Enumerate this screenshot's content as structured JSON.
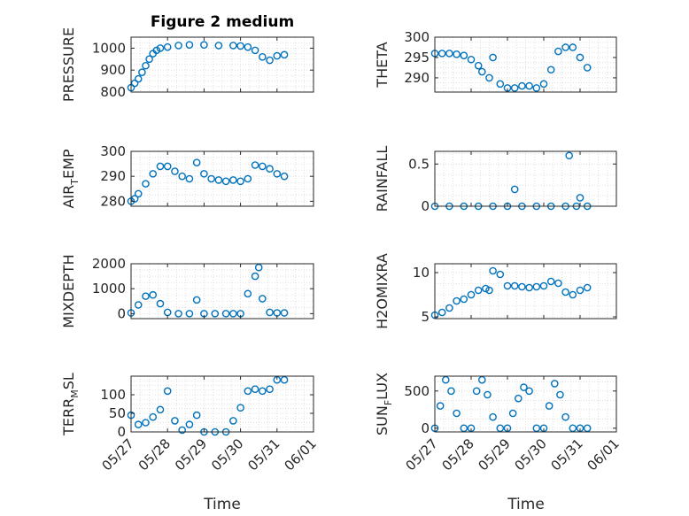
{
  "figure": {
    "title": "Figure 2 medium",
    "xlabel": "Time",
    "marker_color": "#0072BD"
  },
  "chart_data": [
    {
      "type": "scatter",
      "title": "Figure 2 medium",
      "ylabel": "PRESSURE",
      "ylim": [
        800,
        1050
      ],
      "yticks": [
        800,
        900,
        1000
      ],
      "grid": true,
      "xlim": [
        "05/27",
        "06/01"
      ],
      "xticks": [
        "05/27",
        "05/28",
        "05/29",
        "05/30",
        "05/31",
        "06/01"
      ],
      "x": [
        27.0,
        27.1,
        27.2,
        27.3,
        27.4,
        27.5,
        27.6,
        27.7,
        27.8,
        28.0,
        28.3,
        28.6,
        29.0,
        29.4,
        29.8,
        30.0,
        30.2,
        30.4,
        30.6,
        30.8,
        31.0,
        31.2
      ],
      "y": [
        820,
        840,
        860,
        890,
        920,
        950,
        975,
        990,
        1000,
        1005,
        1012,
        1015,
        1015,
        1012,
        1012,
        1010,
        1005,
        990,
        960,
        945,
        965,
        970
      ]
    },
    {
      "type": "scatter",
      "ylabel": "THETA",
      "ylim": [
        286.5,
        300
      ],
      "yticks": [
        290,
        295,
        300
      ],
      "grid": true,
      "xlim": [
        "05/27",
        "06/01"
      ],
      "xticks": [
        "05/27",
        "05/28",
        "05/29",
        "05/30",
        "05/31",
        "06/01"
      ],
      "x": [
        27.0,
        27.2,
        27.4,
        27.6,
        27.8,
        28.0,
        28.2,
        28.3,
        28.5,
        28.6,
        28.8,
        29.0,
        29.2,
        29.4,
        29.6,
        29.8,
        30.0,
        30.2,
        30.4,
        30.6,
        30.8,
        31.0,
        31.2
      ],
      "y": [
        296,
        296,
        296,
        295.8,
        295.5,
        294.5,
        293,
        291.5,
        290,
        295,
        288.5,
        287.5,
        287.5,
        288,
        288,
        287.5,
        288.5,
        292,
        296.5,
        297.5,
        297.5,
        295,
        292.5
      ]
    },
    {
      "type": "scatter",
      "ylabel": "AIR_TEMP",
      "ylim": [
        278,
        300
      ],
      "yticks": [
        280,
        290,
        300
      ],
      "grid": true,
      "xlim": [
        "05/27",
        "06/01"
      ],
      "xticks": [
        "05/27",
        "05/28",
        "05/29",
        "05/30",
        "05/31",
        "06/01"
      ],
      "x": [
        27.0,
        27.1,
        27.2,
        27.4,
        27.6,
        27.8,
        28.0,
        28.2,
        28.4,
        28.6,
        28.8,
        29.0,
        29.2,
        29.4,
        29.6,
        29.8,
        30.0,
        30.2,
        30.4,
        30.6,
        30.8,
        31.0,
        31.2
      ],
      "y": [
        280,
        281,
        283,
        287,
        291,
        294,
        294,
        292,
        290,
        289,
        295.5,
        291,
        289,
        288.5,
        288,
        288.5,
        288,
        289,
        294.5,
        294,
        293,
        291,
        290
      ]
    },
    {
      "type": "scatter",
      "ylabel": "RAINFALL",
      "ylim": [
        0,
        0.65
      ],
      "yticks": [
        0,
        0.5
      ],
      "grid": true,
      "xlim": [
        "05/27",
        "06/01"
      ],
      "xticks": [
        "05/27",
        "05/28",
        "05/29",
        "05/30",
        "05/31",
        "06/01"
      ],
      "x": [
        27.0,
        27.4,
        27.8,
        28.2,
        28.6,
        29.0,
        29.2,
        29.4,
        29.8,
        30.2,
        30.6,
        30.7,
        30.9,
        31.0,
        31.2
      ],
      "y": [
        0,
        0,
        0,
        0,
        0,
        0,
        0.2,
        0,
        0,
        0,
        0,
        0.6,
        0,
        0.1,
        0
      ]
    },
    {
      "type": "scatter",
      "ylabel": "MIXDEPTH",
      "ylim": [
        -200,
        2000
      ],
      "yticks": [
        0,
        1000,
        2000
      ],
      "grid": true,
      "xlim": [
        "05/27",
        "06/01"
      ],
      "xticks": [
        "05/27",
        "05/28",
        "05/29",
        "05/30",
        "05/31",
        "06/01"
      ],
      "x": [
        27.0,
        27.2,
        27.4,
        27.6,
        27.8,
        28.0,
        28.3,
        28.6,
        28.8,
        29.0,
        29.3,
        29.6,
        29.8,
        30.0,
        30.2,
        30.4,
        30.5,
        30.6,
        30.8,
        31.0,
        31.2
      ],
      "y": [
        30,
        350,
        700,
        750,
        400,
        50,
        0,
        0,
        550,
        0,
        0,
        0,
        0,
        0,
        800,
        1500,
        1850,
        600,
        50,
        30,
        30
      ]
    },
    {
      "type": "scatter",
      "ylabel": "H2OMIXRA",
      "ylim": [
        4.8,
        11
      ],
      "yticks": [
        5,
        10
      ],
      "grid": true,
      "xlim": [
        "05/27",
        "06/01"
      ],
      "xticks": [
        "05/27",
        "05/28",
        "05/29",
        "05/30",
        "05/31",
        "06/01"
      ],
      "x": [
        27.0,
        27.2,
        27.4,
        27.6,
        27.8,
        28.0,
        28.2,
        28.4,
        28.5,
        28.6,
        28.8,
        29.0,
        29.2,
        29.4,
        29.6,
        29.8,
        30.0,
        30.2,
        30.4,
        30.6,
        30.8,
        31.0,
        31.2
      ],
      "y": [
        5.2,
        5.5,
        6,
        6.8,
        7,
        7.5,
        8,
        8.2,
        8,
        10.2,
        9.8,
        8.5,
        8.5,
        8.4,
        8.3,
        8.4,
        8.5,
        9,
        8.8,
        7.8,
        7.5,
        8,
        8.3
      ]
    },
    {
      "type": "scatter",
      "ylabel": "TERR_MSL",
      "ylim": [
        0,
        150
      ],
      "yticks": [
        0,
        50,
        100
      ],
      "grid": true,
      "xlim": [
        "05/27",
        "06/01"
      ],
      "xticks": [
        "05/27",
        "05/28",
        "05/29",
        "05/30",
        "05/31",
        "06/01"
      ],
      "x": [
        27.0,
        27.2,
        27.4,
        27.6,
        27.8,
        28.0,
        28.2,
        28.4,
        28.6,
        28.8,
        29.0,
        29.3,
        29.6,
        29.8,
        30.0,
        30.2,
        30.4,
        30.6,
        30.8,
        31.0,
        31.2
      ],
      "y": [
        45,
        20,
        25,
        40,
        60,
        110,
        30,
        5,
        20,
        45,
        0,
        0,
        0,
        30,
        65,
        110,
        115,
        110,
        115,
        140,
        140
      ]
    },
    {
      "type": "scatter",
      "ylabel": "SUN_FLUX",
      "ylim": [
        -50,
        700
      ],
      "yticks": [
        0,
        500
      ],
      "grid": true,
      "xlim": [
        "05/27",
        "06/01"
      ],
      "xticks": [
        "05/27",
        "05/28",
        "05/29",
        "05/30",
        "05/31",
        "06/01"
      ],
      "x": [
        27.0,
        27.15,
        27.3,
        27.45,
        27.6,
        27.8,
        28.0,
        28.15,
        28.3,
        28.45,
        28.6,
        28.8,
        29.0,
        29.15,
        29.3,
        29.45,
        29.6,
        29.8,
        30.0,
        30.15,
        30.3,
        30.45,
        30.6,
        30.8,
        31.0,
        31.2
      ],
      "y": [
        0,
        300,
        650,
        500,
        200,
        0,
        0,
        500,
        650,
        450,
        150,
        0,
        0,
        200,
        400,
        550,
        500,
        0,
        0,
        300,
        600,
        450,
        150,
        0,
        0,
        0
      ]
    }
  ]
}
